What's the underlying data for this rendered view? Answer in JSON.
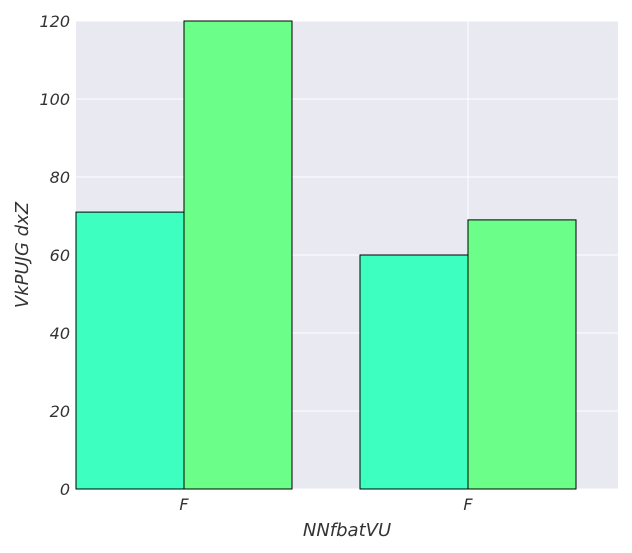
{
  "chart_data": {
    "type": "bar",
    "categories": [
      "F",
      "F"
    ],
    "series": [
      {
        "values": [
          71,
          60
        ],
        "color": "#3dffc0"
      },
      {
        "values": [
          120,
          69
        ],
        "color": "#6bff8a"
      }
    ],
    "xlabel": "NNfbatVU",
    "ylabel": "VkPUJG dxZ",
    "ylim": [
      0,
      120
    ],
    "yticks": [
      0,
      20,
      40,
      60,
      80,
      100,
      120
    ],
    "grid": true,
    "background": "#e9e9f1",
    "bar_edge_color": "#000000"
  }
}
